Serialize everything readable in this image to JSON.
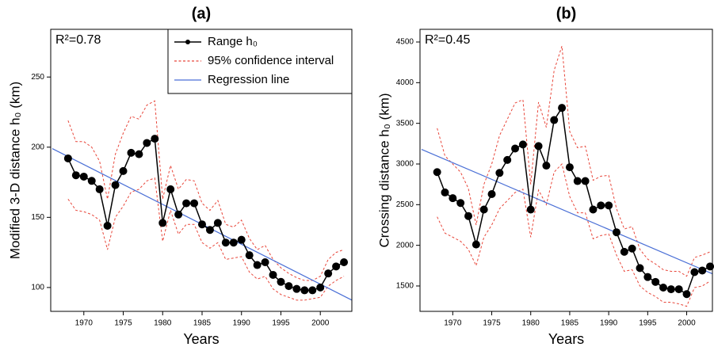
{
  "chart_data": [
    {
      "type": "line",
      "title": "(a)",
      "annotation": "R²=0.78",
      "x_label": "Years",
      "y_label": "Modified 3-D distance h₀ (km)",
      "xlim": [
        1965.8,
        2004
      ],
      "ylim": [
        83,
        284
      ],
      "xticks": [
        1970,
        1975,
        1980,
        1985,
        1990,
        1995,
        2000
      ],
      "yticks": [
        100,
        150,
        200,
        250
      ],
      "legend": "top-right",
      "x": [
        1968,
        1969,
        1970,
        1971,
        1972,
        1973,
        1974,
        1975,
        1976,
        1977,
        1978,
        1979,
        1980,
        1981,
        1982,
        1983,
        1984,
        1985,
        1986,
        1987,
        1988,
        1989,
        1990,
        1991,
        1992,
        1993,
        1994,
        1995,
        1996,
        1997,
        1998,
        1999,
        2000,
        2001,
        2002,
        2003
      ],
      "series": [
        {
          "name": "Range h₀",
          "color": "#000000",
          "style": "points",
          "values": [
            192,
            180,
            179,
            176,
            170,
            144,
            173,
            183,
            196,
            195,
            203,
            206,
            146,
            170,
            152,
            160,
            160,
            145,
            141,
            146,
            132,
            132,
            134,
            123,
            116,
            118,
            109,
            104,
            101,
            99,
            98,
            98,
            100,
            110,
            115,
            118
          ]
        },
        {
          "name": "95% confidence interval",
          "color": "#e8463a",
          "style": "band",
          "upper": [
            219,
            204,
            204,
            200,
            190,
            163,
            195,
            210,
            222,
            220,
            230,
            233,
            163,
            187,
            170,
            177,
            176,
            160,
            155,
            162,
            145,
            143,
            148,
            135,
            127,
            130,
            120,
            114,
            110,
            107,
            105,
            105,
            108,
            120,
            125,
            127
          ],
          "lower": [
            163,
            155,
            154,
            152,
            148,
            127,
            150,
            158,
            168,
            170,
            176,
            178,
            133,
            155,
            138,
            145,
            145,
            132,
            128,
            132,
            120,
            121,
            122,
            111,
            106,
            108,
            99,
            95,
            93,
            91,
            91,
            92,
            93,
            101,
            105,
            108
          ]
        },
        {
          "name": "Regression line",
          "color": "#4a6fd6",
          "style": "line",
          "x": [
            1966,
            2004
          ],
          "values": [
            199,
            91
          ]
        }
      ]
    },
    {
      "type": "line",
      "title": "(b)",
      "annotation": "R²=0.45",
      "x_label": "Years",
      "y_label": "Crossing distance h₀ (km)",
      "xlim": [
        1965.8,
        2003.3
      ],
      "ylim": [
        1188,
        4656
      ],
      "xticks": [
        1970,
        1975,
        1980,
        1985,
        1990,
        1995,
        2000
      ],
      "yticks": [
        1500,
        2000,
        2500,
        3000,
        3500,
        4000,
        4500
      ],
      "x": [
        1968,
        1969,
        1970,
        1971,
        1972,
        1973,
        1974,
        1975,
        1976,
        1977,
        1978,
        1979,
        1980,
        1981,
        1982,
        1983,
        1984,
        1985,
        1986,
        1987,
        1988,
        1989,
        1990,
        1991,
        1992,
        1993,
        1994,
        1995,
        1996,
        1997,
        1998,
        1999,
        2000,
        2001,
        2002,
        2003
      ],
      "series": [
        {
          "color": "#000000",
          "style": "points",
          "values": [
            2900,
            2650,
            2580,
            2520,
            2360,
            2010,
            2440,
            2630,
            2890,
            3050,
            3190,
            3240,
            2440,
            3220,
            2980,
            3540,
            3690,
            2960,
            2790,
            2790,
            2440,
            2490,
            2490,
            2160,
            1920,
            1960,
            1720,
            1610,
            1550,
            1480,
            1460,
            1460,
            1400,
            1670,
            1690,
            1740
          ]
        },
        {
          "color": "#e8463a",
          "style": "band",
          "upper": [
            3440,
            3100,
            3000,
            2900,
            2700,
            2250,
            2750,
            3000,
            3350,
            3550,
            3750,
            3790,
            2750,
            3760,
            3450,
            4150,
            4450,
            3400,
            3200,
            3220,
            2800,
            2850,
            2860,
            2450,
            2200,
            2230,
            1950,
            1830,
            1770,
            1700,
            1680,
            1680,
            1620,
            1850,
            1880,
            1920
          ],
          "lower": [
            2350,
            2150,
            2100,
            2050,
            1950,
            1750,
            2100,
            2250,
            2450,
            2550,
            2650,
            2690,
            2100,
            2680,
            2500,
            2900,
            3000,
            2600,
            2400,
            2400,
            2080,
            2120,
            2140,
            1880,
            1680,
            1700,
            1500,
            1420,
            1370,
            1300,
            1300,
            1280,
            1250,
            1480,
            1500,
            1560
          ]
        },
        {
          "color": "#4a6fd6",
          "style": "line",
          "x": [
            1966,
            2003.3
          ],
          "values": [
            3180,
            1650
          ]
        }
      ]
    }
  ]
}
